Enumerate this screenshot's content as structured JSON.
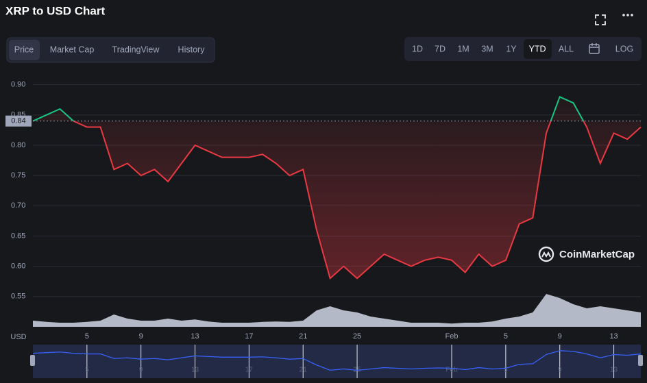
{
  "ui": {
    "tabs": [
      "Price",
      "Market Cap",
      "TradingView",
      "History"
    ],
    "ranges": [
      "1D",
      "7D",
      "1M",
      "3M",
      "1Y",
      "YTD",
      "ALL"
    ],
    "log": "LOG",
    "watermark": "CoinMarketCap",
    "y_unit": "USD"
  },
  "chart_data": {
    "type": "line",
    "title": "XRP to USD Chart",
    "categories": [
      null,
      null,
      null,
      null,
      "5",
      null,
      null,
      null,
      "9",
      null,
      null,
      null,
      "13",
      null,
      null,
      null,
      "17",
      null,
      null,
      null,
      "21",
      null,
      null,
      null,
      "25",
      null,
      null,
      null,
      null,
      null,
      null,
      "Feb",
      null,
      null,
      null,
      "5",
      null,
      null,
      null,
      "9",
      null,
      null,
      null,
      "13",
      null,
      null
    ],
    "series": [
      {
        "name": "Price",
        "color": "#ea3943",
        "up_color": "#16c784",
        "values": [
          0.84,
          0.85,
          0.86,
          0.84,
          0.83,
          0.83,
          0.76,
          0.77,
          0.75,
          0.76,
          0.74,
          0.77,
          0.8,
          0.79,
          0.78,
          0.78,
          0.78,
          0.785,
          0.77,
          0.75,
          0.76,
          0.66,
          0.58,
          0.6,
          0.58,
          0.6,
          0.62,
          0.61,
          0.6,
          0.61,
          0.615,
          0.61,
          0.59,
          0.62,
          0.6,
          0.61,
          0.67,
          0.68,
          0.82,
          0.88,
          0.87,
          0.83,
          0.77,
          0.82,
          0.81,
          0.83
        ]
      },
      {
        "name": "Volume",
        "color": "#cfd6e4",
        "axis": "y2",
        "values": [
          1.5,
          1.2,
          1,
          1,
          1.2,
          1.5,
          3,
          2,
          1.5,
          1.5,
          2,
          1.5,
          1.8,
          1.3,
          1,
          1,
          1,
          1.2,
          1.3,
          1.2,
          1.5,
          4,
          5,
          4,
          3.5,
          2.5,
          2,
          1.5,
          1,
          1,
          1,
          0.8,
          1,
          1,
          1.3,
          2,
          2.5,
          3.5,
          8,
          7,
          5.5,
          4.5,
          5,
          4.5,
          4,
          3.5
        ]
      }
    ],
    "baseline": 0.84,
    "ylim": [
      0.5,
      0.92
    ],
    "yticks": [
      {
        "value": 0.9,
        "label": "0.90"
      },
      0.85,
      {
        "value": 0.8,
        "label": "0.80"
      },
      0.75,
      {
        "value": 0.7,
        "label": "0.70"
      },
      0.65,
      {
        "value": 0.6,
        "label": "0.60"
      },
      0.55
    ],
    "y2lim": [
      0,
      10
    ],
    "grid": true
  }
}
